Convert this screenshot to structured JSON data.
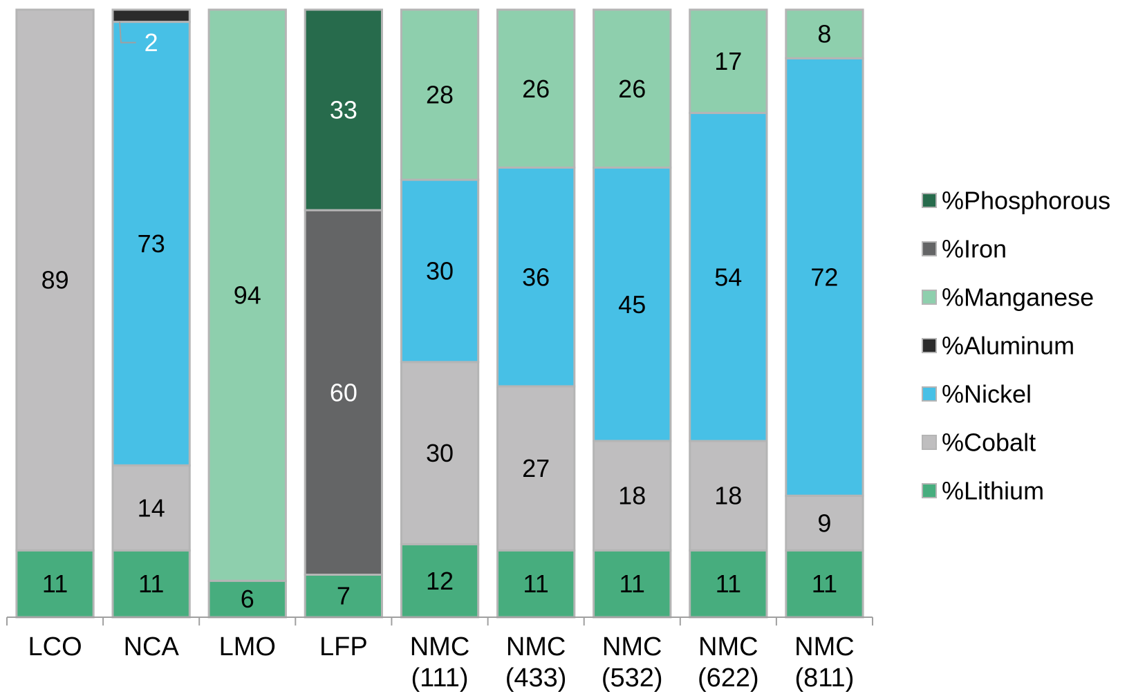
{
  "chart_data": {
    "type": "bar",
    "stacked": true,
    "categories": [
      "LCO",
      "NCA",
      "LMO",
      "LFP",
      "NMC (111)",
      "NMC (433)",
      "NMC (532)",
      "NMC (622)",
      "NMC (811)"
    ],
    "category_lines": [
      [
        "LCO"
      ],
      [
        "NCA"
      ],
      [
        "LMO"
      ],
      [
        "LFP"
      ],
      [
        "NMC",
        "(111)"
      ],
      [
        "NMC",
        "(433)"
      ],
      [
        "NMC",
        "(532)"
      ],
      [
        "NMC",
        "(622)"
      ],
      [
        "NMC",
        "(811)"
      ]
    ],
    "series": [
      {
        "name": "%Lithium",
        "color": "#47ad7e",
        "values": [
          11,
          11,
          6,
          7,
          12,
          11,
          11,
          11,
          11
        ]
      },
      {
        "name": "%Cobalt",
        "color": "#bfbebf",
        "values": [
          89,
          14,
          0,
          0,
          30,
          27,
          18,
          18,
          9
        ]
      },
      {
        "name": "%Nickel",
        "color": "#47c0e6",
        "values": [
          0,
          73,
          0,
          0,
          30,
          36,
          45,
          54,
          72
        ]
      },
      {
        "name": "%Aluminum",
        "color": "#2b2b2b",
        "values": [
          0,
          2,
          0,
          0,
          0,
          0,
          0,
          0,
          0
        ]
      },
      {
        "name": "%Manganese",
        "color": "#8ecfad",
        "values": [
          0,
          0,
          94,
          0,
          28,
          26,
          26,
          17,
          8
        ]
      },
      {
        "name": "%Iron",
        "color": "#646566",
        "values": [
          0,
          0,
          0,
          60,
          0,
          0,
          0,
          0,
          0
        ]
      },
      {
        "name": "%Phosphorous",
        "color": "#276b4c",
        "values": [
          0,
          0,
          0,
          33,
          0,
          0,
          0,
          0,
          0
        ]
      }
    ],
    "data_labels": [
      [
        "11",
        "89",
        "",
        "",
        "",
        "",
        ""
      ],
      [
        "11",
        "14",
        "73",
        "2",
        "",
        "",
        ""
      ],
      [
        "6",
        "",
        "",
        "",
        "94",
        "",
        ""
      ],
      [
        "7",
        "",
        "",
        "",
        "",
        "60",
        "33"
      ],
      [
        "12",
        "30",
        "30",
        "",
        "28",
        "",
        ""
      ],
      [
        "11",
        "27",
        "36",
        "",
        "26",
        "",
        ""
      ],
      [
        "11",
        "18",
        "45",
        "",
        "26",
        "",
        ""
      ],
      [
        "11",
        "18",
        "54",
        "",
        "17",
        "",
        ""
      ],
      [
        "11",
        "9",
        "72",
        "",
        "8",
        "",
        ""
      ]
    ],
    "legend_order": [
      "%Phosphorous",
      "%Iron",
      "%Manganese",
      "%Aluminum",
      "%Nickel",
      "%Cobalt",
      "%Lithium"
    ],
    "legend_position": "right",
    "ylim": [
      0,
      100
    ],
    "grid": false,
    "title": "",
    "xlabel": "",
    "ylabel": ""
  }
}
